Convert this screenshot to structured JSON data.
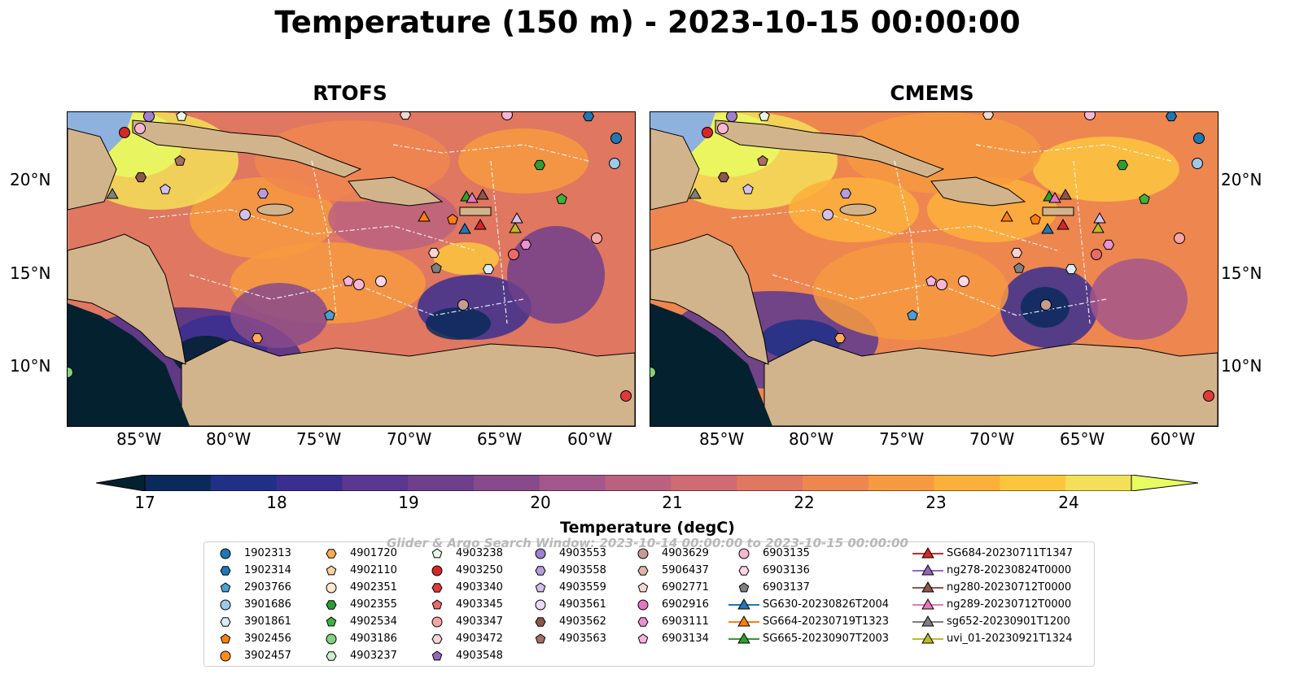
{
  "title": "Temperature (150 m) - 2023-10-15 00:00:00",
  "panels": [
    {
      "title": "RTOFS"
    },
    {
      "title": "CMEMS"
    }
  ],
  "lat_ticks": [
    "20°N",
    "15°N",
    "10°N"
  ],
  "lon_ticks": [
    "85°W",
    "80°W",
    "75°W",
    "70°W",
    "65°W",
    "60°W"
  ],
  "colorbar": {
    "label": "Temperature (degC)",
    "ticks": [
      "17",
      "18",
      "19",
      "20",
      "21",
      "22",
      "23",
      "24"
    ],
    "colors": [
      "#03212f",
      "#0a2a5c",
      "#1f3086",
      "#3a2f90",
      "#5a3790",
      "#703f8c",
      "#874a8b",
      "#a3578a",
      "#bb6180",
      "#cf6b72",
      "#e07760",
      "#ee8650",
      "#f69a40",
      "#fbb03b",
      "#fbc63e",
      "#f3df58",
      "#e8fc62"
    ]
  },
  "watermark": "Glider & Argo Search Window: 2023-10-14 00:00:00 to 2023-10-15 00:00:00",
  "legend": {
    "columns": [
      [
        {
          "label": "1902313",
          "marker": "circle",
          "color": "#1f77b4"
        },
        {
          "label": "1902314",
          "marker": "hexagon",
          "color": "#1f77b4"
        },
        {
          "label": "2903766",
          "marker": "pentagon",
          "color": "#4a9fd6"
        },
        {
          "label": "3901686",
          "marker": "circle",
          "color": "#9ccbea"
        },
        {
          "label": "3901861",
          "marker": "hexagon",
          "color": "#d9ecf8"
        },
        {
          "label": "3902456",
          "marker": "pentagon",
          "color": "#ff7f0e"
        },
        {
          "label": "3902457",
          "marker": "circle",
          "color": "#ff8c1a"
        }
      ],
      [
        {
          "label": "4901720",
          "marker": "hexagon",
          "color": "#ffab55"
        },
        {
          "label": "4902110",
          "marker": "pentagon",
          "color": "#ffd0a0"
        },
        {
          "label": "4902351",
          "marker": "circle",
          "color": "#ffe8cf"
        },
        {
          "label": "4902355",
          "marker": "hexagon",
          "color": "#2ca02c"
        },
        {
          "label": "4902534",
          "marker": "pentagon",
          "color": "#3cb43c"
        },
        {
          "label": "4903186",
          "marker": "circle",
          "color": "#7fd37f"
        },
        {
          "label": "4903237",
          "marker": "hexagon",
          "color": "#c9efc9"
        }
      ],
      [
        {
          "label": "4903238",
          "marker": "pentagon",
          "color": "#e8f8e8"
        },
        {
          "label": "4903250",
          "marker": "circle",
          "color": "#d62728"
        },
        {
          "label": "4903340",
          "marker": "hexagon",
          "color": "#e0393a"
        },
        {
          "label": "4903345",
          "marker": "pentagon",
          "color": "#ea6a6a"
        },
        {
          "label": "4903347",
          "marker": "circle",
          "color": "#f5a5a5"
        },
        {
          "label": "4903472",
          "marker": "hexagon",
          "color": "#fad2d2"
        },
        {
          "label": "4903548",
          "marker": "pentagon",
          "color": "#9467bd"
        }
      ],
      [
        {
          "label": "4903553",
          "marker": "circle",
          "color": "#9f7fcf"
        },
        {
          "label": "4903558",
          "marker": "hexagon",
          "color": "#b79ce0"
        },
        {
          "label": "4903559",
          "marker": "pentagon",
          "color": "#d2c0ef"
        },
        {
          "label": "4903561",
          "marker": "circle",
          "color": "#ead9fa"
        },
        {
          "label": "4903562",
          "marker": "hexagon",
          "color": "#8c564b"
        },
        {
          "label": "4903563",
          "marker": "pentagon",
          "color": "#a66f62"
        }
      ],
      [
        {
          "label": "4903629",
          "marker": "circle",
          "color": "#c49c94"
        },
        {
          "label": "5906437",
          "marker": "hexagon",
          "color": "#dcb6a8"
        },
        {
          "label": "6902771",
          "marker": "pentagon",
          "color": "#f4d8cf"
        },
        {
          "label": "6902916",
          "marker": "circle",
          "color": "#e377c2"
        },
        {
          "label": "6903111",
          "marker": "hexagon",
          "color": "#ec91d1"
        },
        {
          "label": "6903134",
          "marker": "pentagon",
          "color": "#f4b3e0"
        }
      ],
      [
        {
          "label": "6903135",
          "marker": "circle",
          "color": "#f7b6d2"
        },
        {
          "label": "6903136",
          "marker": "hexagon",
          "color": "#fbd5e8"
        },
        {
          "label": "6903137",
          "marker": "pentagon",
          "color": "#7f7f7f"
        },
        {
          "label": "SG630-20230826T2004",
          "marker": "triangle-line",
          "color": "#1f77b4"
        },
        {
          "label": "SG664-20230719T1323",
          "marker": "triangle-line",
          "color": "#ff7f0e"
        },
        {
          "label": "SG665-20230907T2003",
          "marker": "triangle-line",
          "color": "#2ca02c"
        }
      ],
      [
        {
          "label": "SG684-20230711T1347",
          "marker": "triangle-line",
          "color": "#d62728"
        },
        {
          "label": "ng278-20230824T0000",
          "marker": "triangle-line",
          "color": "#9467bd"
        },
        {
          "label": "ng280-20230712T0000",
          "marker": "triangle-line",
          "color": "#8c564b"
        },
        {
          "label": "ng289-20230712T0000",
          "marker": "triangle-line",
          "color": "#e377c2"
        },
        {
          "label": "sg652-20230901T1200",
          "marker": "triangle-line",
          "color": "#7f7f7f"
        },
        {
          "label": "uvi_01-20230921T1324",
          "marker": "triangle-line",
          "color": "#bcbd22"
        }
      ]
    ]
  }
}
